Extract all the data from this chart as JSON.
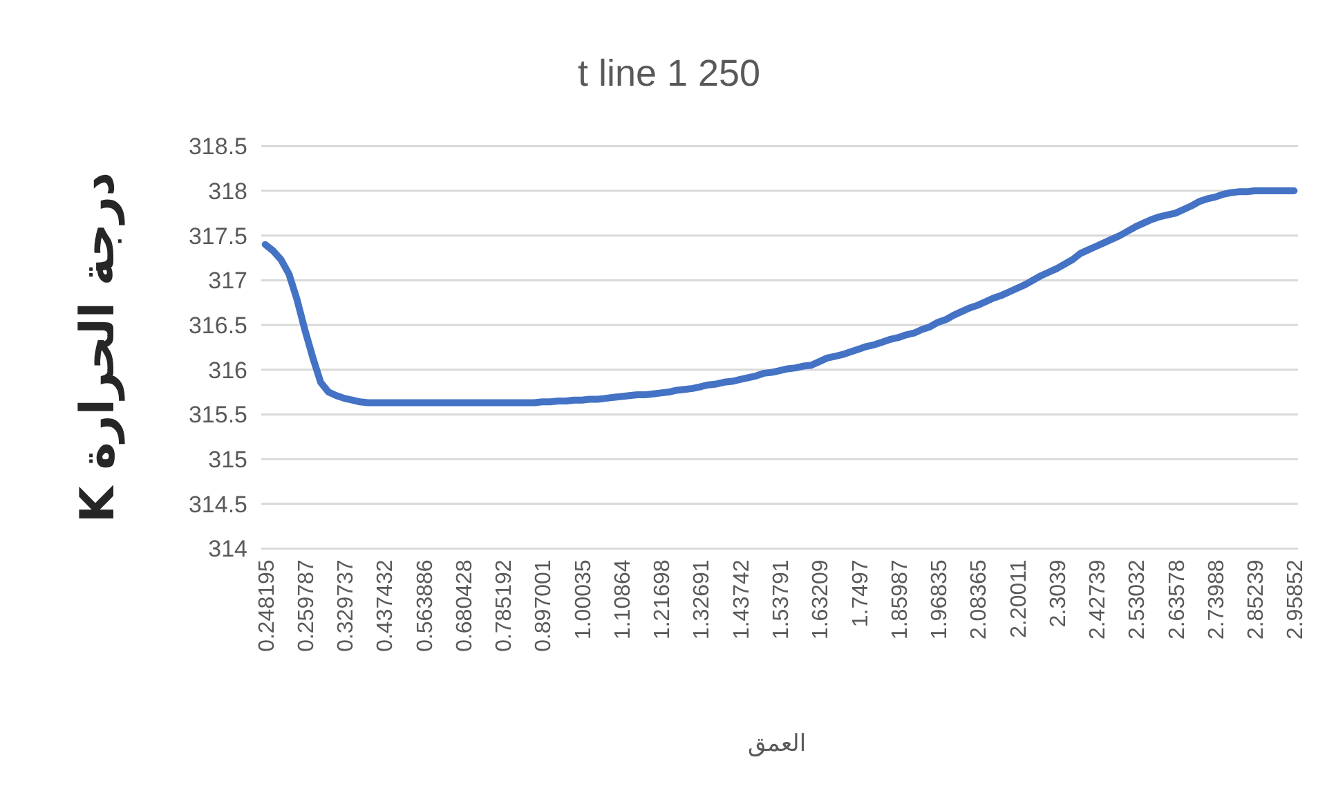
{
  "chart_data": {
    "type": "line",
    "title": "t line 1  250",
    "xlabel": "العمق",
    "ylabel": "درجة الحرارة K",
    "categories": [
      "0.248195",
      null,
      null,
      null,
      null,
      "0.259787",
      null,
      null,
      null,
      null,
      "0.329737",
      null,
      null,
      null,
      null,
      "0.437432",
      null,
      null,
      null,
      null,
      "0.563886",
      null,
      null,
      null,
      null,
      "0.680428",
      null,
      null,
      null,
      null,
      "0.785192",
      null,
      null,
      null,
      null,
      "0.897001",
      null,
      null,
      null,
      null,
      "1.00035",
      null,
      null,
      null,
      null,
      "1.10864",
      null,
      null,
      null,
      null,
      "1.21698",
      null,
      null,
      null,
      null,
      "1.32691",
      null,
      null,
      null,
      null,
      "1.43742",
      null,
      null,
      null,
      null,
      "1.53791",
      null,
      null,
      null,
      null,
      "1.63209",
      null,
      null,
      null,
      null,
      "1.7497",
      null,
      null,
      null,
      null,
      "1.85987",
      null,
      null,
      null,
      null,
      "1.96835",
      null,
      null,
      null,
      null,
      "2.08365",
      null,
      null,
      null,
      null,
      "2.20011",
      null,
      null,
      null,
      null,
      "2.3039",
      null,
      null,
      null,
      null,
      "2.42739",
      null,
      null,
      null,
      null,
      "2.53032",
      null,
      null,
      null,
      null,
      "2.63578",
      null,
      null,
      null,
      null,
      "2.73988",
      null,
      null,
      null,
      null,
      "2.85239",
      null,
      null,
      null,
      null,
      "2.95852"
    ],
    "series": [
      {
        "color": "#4472c4",
        "values": [
          317.4,
          317.33,
          317.23,
          317.07,
          316.79,
          316.45,
          316.14,
          315.86,
          315.75,
          315.71,
          315.68,
          315.66,
          315.64,
          315.63,
          315.63,
          315.63,
          315.63,
          315.63,
          315.63,
          315.63,
          315.63,
          315.63,
          315.63,
          315.63,
          315.63,
          315.63,
          315.63,
          315.63,
          315.63,
          315.63,
          315.63,
          315.63,
          315.63,
          315.63,
          315.63,
          315.64,
          315.64,
          315.65,
          315.65,
          315.66,
          315.66,
          315.67,
          315.67,
          315.68,
          315.69,
          315.7,
          315.71,
          315.72,
          315.72,
          315.73,
          315.74,
          315.75,
          315.77,
          315.78,
          315.79,
          315.81,
          315.83,
          315.84,
          315.86,
          315.87,
          315.89,
          315.91,
          315.93,
          315.96,
          315.97,
          315.99,
          316.01,
          316.02,
          316.04,
          316.05,
          316.09,
          316.13,
          316.15,
          316.17,
          316.2,
          316.23,
          316.26,
          316.28,
          316.31,
          316.34,
          316.36,
          316.39,
          316.41,
          316.45,
          316.48,
          316.53,
          316.56,
          316.61,
          316.65,
          316.69,
          316.72,
          316.76,
          316.8,
          316.83,
          316.87,
          316.91,
          316.95,
          317.0,
          317.05,
          317.09,
          317.13,
          317.18,
          317.23,
          317.3,
          317.34,
          317.38,
          317.42,
          317.46,
          317.5,
          317.55,
          317.6,
          317.64,
          317.68,
          317.71,
          317.73,
          317.75,
          317.79,
          317.83,
          317.88,
          317.91,
          317.93,
          317.96,
          317.98,
          317.99,
          317.99,
          318.0,
          318.0,
          318.0,
          318.0,
          318.0,
          318.0
        ]
      }
    ],
    "ylim": [
      314,
      318.5
    ],
    "yticks": [
      314,
      314.5,
      315,
      315.5,
      316,
      316.5,
      317,
      317.5,
      318,
      318.5
    ],
    "grid": "y",
    "marker": "none",
    "line_style": "solid"
  }
}
